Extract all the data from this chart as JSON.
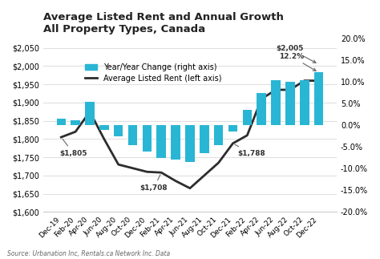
{
  "title": "Average Listed Rent and Annual Growth\nAll Property Types, Canada",
  "source": "Source: Urbanation Inc, Rentals.ca Network Inc. Data",
  "background_color": "#ffffff",
  "categories": [
    "Dec-19",
    "Feb-20",
    "Apr-20",
    "Jun-20",
    "Aug-20",
    "Oct-20",
    "Dec-20",
    "Feb-21",
    "Apr-21",
    "Jun-21",
    "Aug-21",
    "Oct-21",
    "Dec-21",
    "Feb-22",
    "Apr-22",
    "Jun-22",
    "Aug-22",
    "Oct-22",
    "Dec-22"
  ],
  "avg_rent": [
    1805,
    1820,
    1875,
    1800,
    1730,
    1720,
    1710,
    1708,
    1685,
    1665,
    1700,
    1735,
    1788,
    1810,
    1910,
    1935,
    1935,
    1960,
    1960
  ],
  "yoy_change": [
    1.5,
    1.2,
    5.5,
    -1.0,
    -2.5,
    -4.5,
    -6.0,
    -7.5,
    -8.0,
    -8.5,
    -6.5,
    -4.5,
    -1.5,
    3.5,
    7.5,
    10.5,
    10.0,
    10.5,
    12.2
  ],
  "bar_color": "#29b6d4",
  "line_color": "#2d2d2d",
  "ylim_left": [
    1600,
    2075
  ],
  "ylim_right": [
    -20.0,
    20.0
  ],
  "yticks_left": [
    1600,
    1650,
    1700,
    1750,
    1800,
    1850,
    1900,
    1950,
    2000,
    2050
  ],
  "yticks_right": [
    -20.0,
    -15.0,
    -10.0,
    -5.0,
    0.0,
    5.0,
    10.0,
    15.0,
    20.0
  ],
  "grid_color": "#e0e0e0",
  "title_fontsize": 9.5,
  "tick_fontsize": 7,
  "legend_fontsize": 7
}
